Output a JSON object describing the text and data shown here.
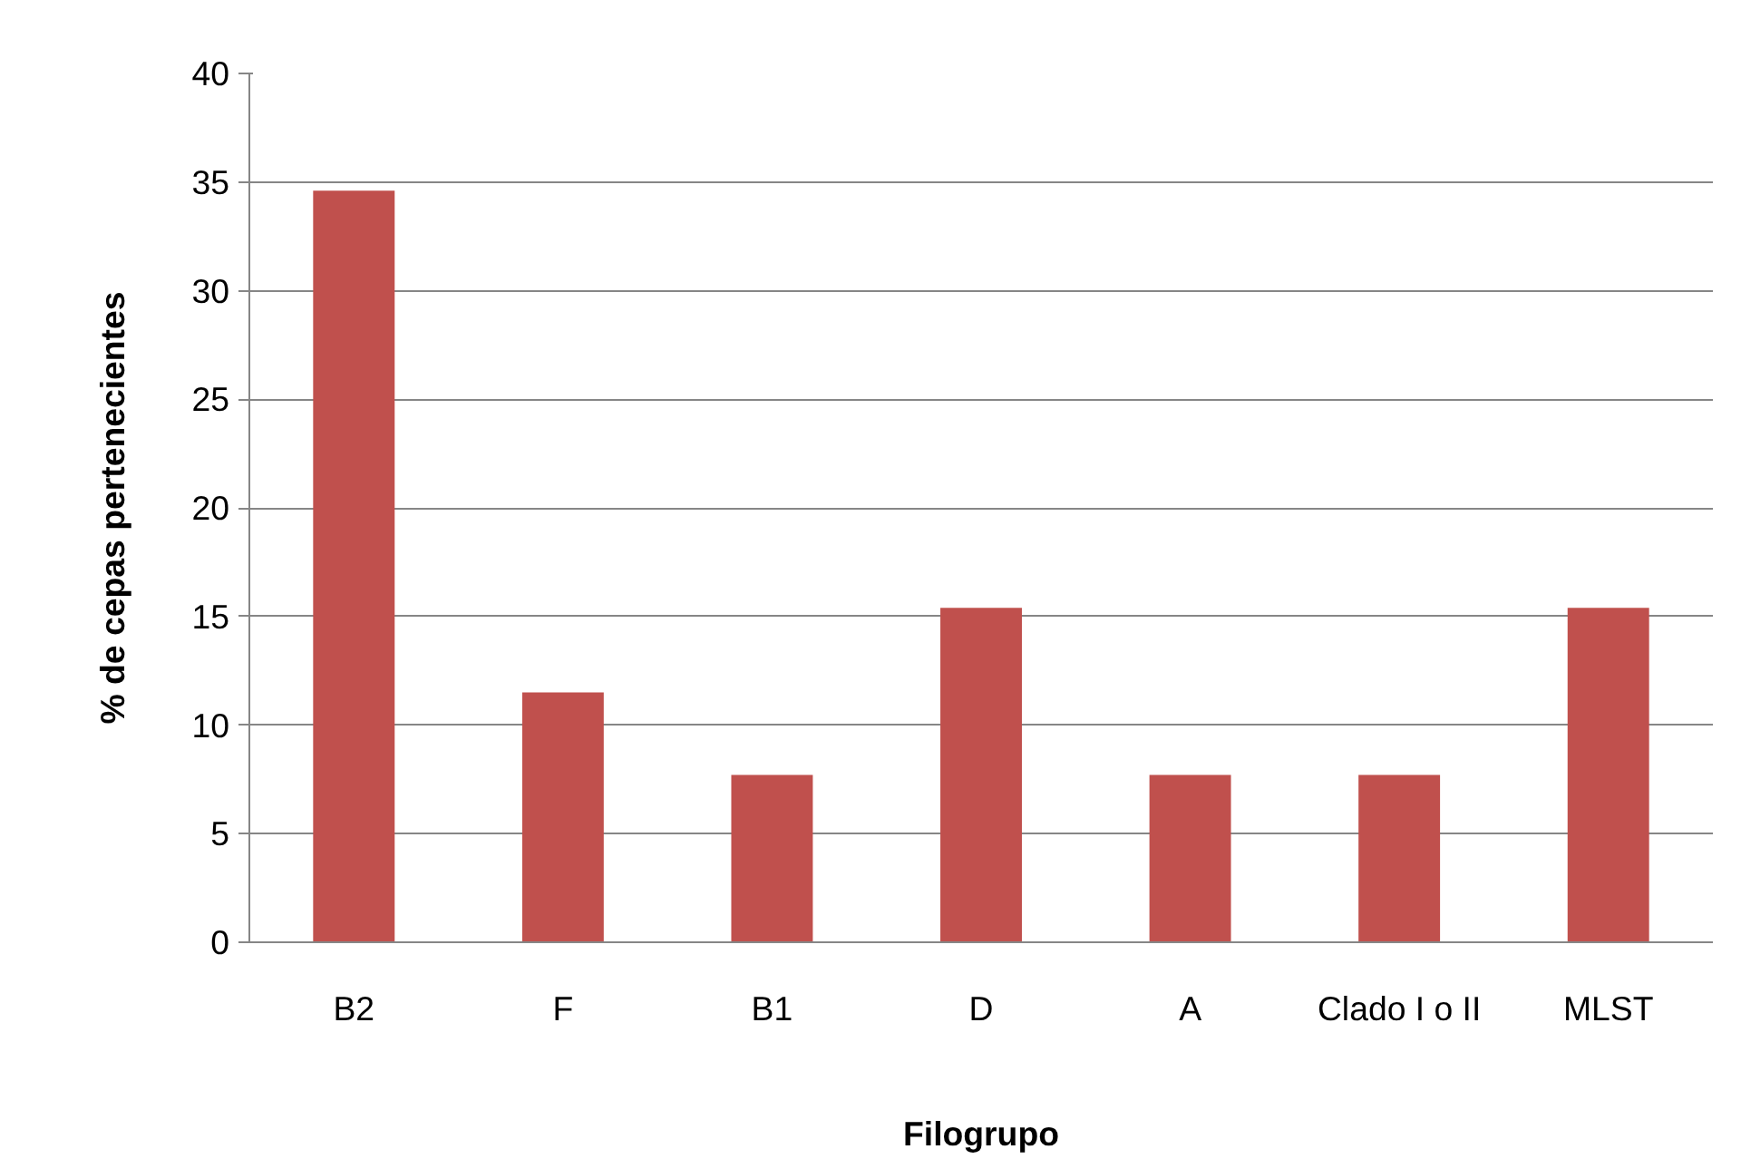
{
  "chart_data": {
    "type": "bar",
    "xlabel": "Filogrupo",
    "ylabel": "% de cepas pertenecientes",
    "categories": [
      "B2",
      "F",
      "B1",
      "D",
      "A",
      "Clado I o II",
      "MLST"
    ],
    "values": [
      34.6,
      11.5,
      7.7,
      15.4,
      7.7,
      7.7,
      15.4
    ],
    "color": "#c0504d",
    "ylim": [
      0,
      40
    ],
    "yticks": [
      0,
      5,
      10,
      15,
      20,
      25,
      30,
      35,
      40
    ],
    "grid": "y"
  }
}
